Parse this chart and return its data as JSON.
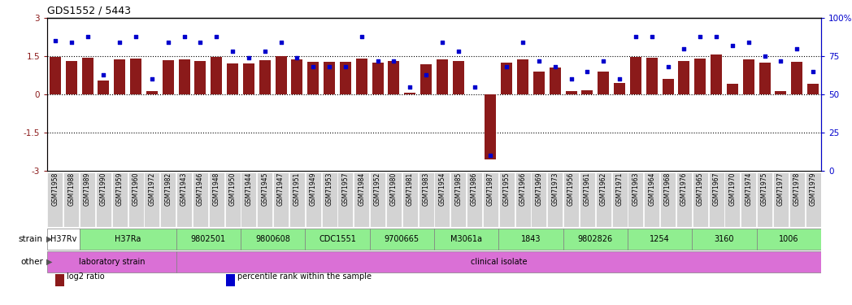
{
  "title": "GDS1552 / 5443",
  "samples": [
    "GSM71958",
    "GSM71988",
    "GSM71989",
    "GSM71990",
    "GSM71959",
    "GSM71960",
    "GSM71972",
    "GSM71982",
    "GSM71943",
    "GSM71946",
    "GSM71948",
    "GSM71950",
    "GSM71944",
    "GSM71945",
    "GSM71947",
    "GSM71951",
    "GSM71949",
    "GSM71953",
    "GSM71957",
    "GSM71984",
    "GSM71952",
    "GSM71980",
    "GSM71981",
    "GSM71983",
    "GSM71954",
    "GSM71985",
    "GSM71986",
    "GSM71987",
    "GSM71955",
    "GSM71966",
    "GSM71969",
    "GSM71973",
    "GSM71956",
    "GSM71961",
    "GSM71962",
    "GSM71971",
    "GSM71963",
    "GSM71964",
    "GSM71968",
    "GSM71976",
    "GSM71965",
    "GSM71967",
    "GSM71970",
    "GSM71974",
    "GSM71975",
    "GSM71977",
    "GSM71978",
    "GSM71979"
  ],
  "log2_ratio": [
    1.48,
    1.3,
    1.45,
    0.55,
    1.38,
    1.42,
    0.12,
    1.35,
    1.38,
    1.32,
    1.47,
    1.22,
    1.22,
    1.35,
    1.5,
    1.38,
    1.28,
    1.28,
    1.28,
    1.42,
    1.25,
    1.3,
    0.05,
    1.18,
    1.38,
    1.3,
    0.0,
    -2.55,
    1.25,
    1.38,
    0.88,
    1.05,
    0.12,
    0.15,
    0.88,
    0.45,
    1.48,
    1.45,
    0.6,
    1.3,
    1.42,
    1.55,
    0.4,
    1.38,
    1.25,
    0.12,
    1.28,
    0.42
  ],
  "percentile": [
    85,
    84,
    88,
    63,
    84,
    88,
    60,
    84,
    88,
    84,
    88,
    78,
    74,
    78,
    84,
    74,
    68,
    68,
    68,
    88,
    72,
    72,
    55,
    63,
    84,
    78,
    55,
    10,
    68,
    84,
    72,
    68,
    60,
    65,
    72,
    60,
    88,
    88,
    68,
    80,
    88,
    88,
    82,
    84,
    75,
    72,
    80,
    65
  ],
  "strain_groups": [
    {
      "label": "H37Rv",
      "start": 0,
      "end": 2,
      "color": "#f0fff0"
    },
    {
      "label": "H37Ra",
      "start": 2,
      "end": 8,
      "color": "#90ee90"
    },
    {
      "label": "9802501",
      "start": 8,
      "end": 12,
      "color": "#90ee90"
    },
    {
      "label": "9800608",
      "start": 12,
      "end": 16,
      "color": "#90ee90"
    },
    {
      "label": "CDC1551",
      "start": 16,
      "end": 20,
      "color": "#90ee90"
    },
    {
      "label": "9700665",
      "start": 20,
      "end": 24,
      "color": "#90ee90"
    },
    {
      "label": "M3061a",
      "start": 24,
      "end": 28,
      "color": "#90ee90"
    },
    {
      "label": "1843",
      "start": 28,
      "end": 32,
      "color": "#90ee90"
    },
    {
      "label": "9802826",
      "start": 32,
      "end": 36,
      "color": "#90ee90"
    },
    {
      "label": "1254",
      "start": 36,
      "end": 40,
      "color": "#90ee90"
    },
    {
      "label": "3160",
      "start": 40,
      "end": 44,
      "color": "#90ee90"
    },
    {
      "label": "1006",
      "start": 44,
      "end": 48,
      "color": "#90ee90"
    }
  ],
  "other_groups": [
    {
      "label": "laboratory strain",
      "start": 0,
      "end": 8,
      "color": "#da70d6"
    },
    {
      "label": "clinical isolate",
      "start": 8,
      "end": 48,
      "color": "#da70d6"
    }
  ],
  "bar_color": "#8b1a1a",
  "dot_color": "#0000cc",
  "bg_color": "#ffffff",
  "tick_bg_color": "#d3d3d3",
  "ylim": [
    -3,
    3
  ],
  "y2lim": [
    0,
    100
  ],
  "yticks": [
    -3,
    -1.5,
    0,
    1.5,
    3
  ],
  "y2ticks": [
    0,
    25,
    50,
    75,
    100
  ],
  "dotted_lines": [
    1.5,
    0,
    -1.5
  ],
  "legend_items": [
    {
      "label": "log2 ratio",
      "color": "#8b1a1a"
    },
    {
      "label": "percentile rank within the sample",
      "color": "#0000cc"
    }
  ]
}
